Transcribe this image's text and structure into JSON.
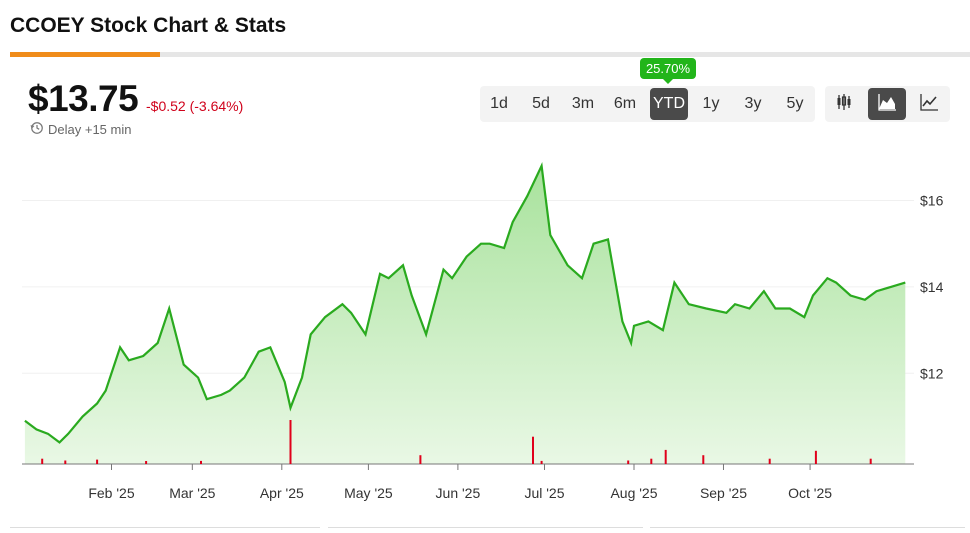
{
  "header": {
    "title": "CCOEY Stock Chart & Stats"
  },
  "quote": {
    "price": "$13.75",
    "change": "-$0.52 (-3.64%)",
    "delay": "Delay +15 min"
  },
  "ranges": {
    "items": [
      "1d",
      "5d",
      "3m",
      "6m",
      "YTD",
      "1y",
      "3y",
      "5y"
    ],
    "active": "YTD",
    "active_return": "25.70%"
  },
  "chart_types": {
    "items": [
      "candlestick-icon",
      "area-chart-icon",
      "line-chart-icon"
    ],
    "active": "area-chart-icon"
  },
  "colors": {
    "line": "#2aaa1f",
    "fill_top": "#a8e29c",
    "volume": "#e0001b",
    "badge": "#22b51a",
    "accent": "#f08c1a"
  },
  "chart_data": {
    "type": "area",
    "x_tick_labels": [
      "Feb '25",
      "Mar '25",
      "Apr '25",
      "May '25",
      "Jun '25",
      "Jul '25",
      "Aug '25",
      "Sep '25",
      "Oct '25"
    ],
    "y_tick_labels": [
      "$12",
      "$14",
      "$16"
    ],
    "ylim": [
      9.9,
      17.4
    ],
    "x": [
      "2025-01-02",
      "2025-01-06",
      "2025-01-10",
      "2025-01-14",
      "2025-01-17",
      "2025-01-22",
      "2025-01-27",
      "2025-01-30",
      "2025-02-04",
      "2025-02-07",
      "2025-02-12",
      "2025-02-17",
      "2025-02-21",
      "2025-02-26",
      "2025-03-03",
      "2025-03-06",
      "2025-03-11",
      "2025-03-14",
      "2025-03-19",
      "2025-03-24",
      "2025-03-28",
      "2025-04-02",
      "2025-04-04",
      "2025-04-08",
      "2025-04-11",
      "2025-04-16",
      "2025-04-22",
      "2025-04-25",
      "2025-04-30",
      "2025-05-05",
      "2025-05-08",
      "2025-05-13",
      "2025-05-16",
      "2025-05-21",
      "2025-05-27",
      "2025-05-30",
      "2025-06-04",
      "2025-06-09",
      "2025-06-12",
      "2025-06-17",
      "2025-06-20",
      "2025-06-25",
      "2025-06-30",
      "2025-07-03",
      "2025-07-09",
      "2025-07-14",
      "2025-07-18",
      "2025-07-23",
      "2025-07-28",
      "2025-07-31",
      "2025-08-01",
      "2025-08-06",
      "2025-08-11",
      "2025-08-15",
      "2025-08-20",
      "2025-08-26",
      "2025-09-02",
      "2025-09-05",
      "2025-09-10",
      "2025-09-15",
      "2025-09-19",
      "2025-09-24",
      "2025-09-29",
      "2025-10-02",
      "2025-10-07",
      "2025-10-10",
      "2025-10-15",
      "2025-10-20",
      "2025-10-24",
      "2025-10-29",
      "2025-11-03"
    ],
    "series": [
      {
        "values": [
          10.9,
          10.7,
          10.6,
          10.4,
          10.6,
          11.0,
          11.3,
          11.6,
          12.6,
          12.3,
          12.4,
          12.7,
          13.5,
          12.2,
          11.9,
          11.4,
          11.5,
          11.6,
          11.9,
          12.5,
          12.6,
          11.8,
          11.2,
          11.9,
          12.9,
          13.3,
          13.6,
          13.4,
          12.9,
          14.3,
          14.2,
          14.5,
          13.8,
          12.9,
          14.4,
          14.2,
          14.7,
          15.0,
          15.0,
          14.9,
          15.5,
          16.1,
          16.8,
          15.2,
          14.5,
          14.2,
          15.0,
          15.1,
          13.2,
          12.7,
          13.1,
          13.2,
          13.0,
          14.1,
          13.6,
          13.5,
          13.4,
          13.6,
          13.5,
          13.9,
          13.5,
          13.5,
          13.3,
          13.8,
          14.2,
          14.1,
          13.8,
          13.7,
          13.9,
          14.0,
          14.1
        ]
      }
    ],
    "volume": {
      "x": [
        "2025-01-08",
        "2025-01-16",
        "2025-01-27",
        "2025-02-13",
        "2025-03-04",
        "2025-04-04",
        "2025-05-19",
        "2025-06-27",
        "2025-06-30",
        "2025-07-30",
        "2025-08-07",
        "2025-08-12",
        "2025-08-25",
        "2025-09-17",
        "2025-10-03",
        "2025-10-22"
      ],
      "values": [
        0.12,
        0.08,
        0.1,
        0.05,
        0.07,
        1.0,
        0.2,
        0.62,
        0.07,
        0.08,
        0.12,
        0.32,
        0.2,
        0.12,
        0.3,
        0.12
      ]
    }
  }
}
